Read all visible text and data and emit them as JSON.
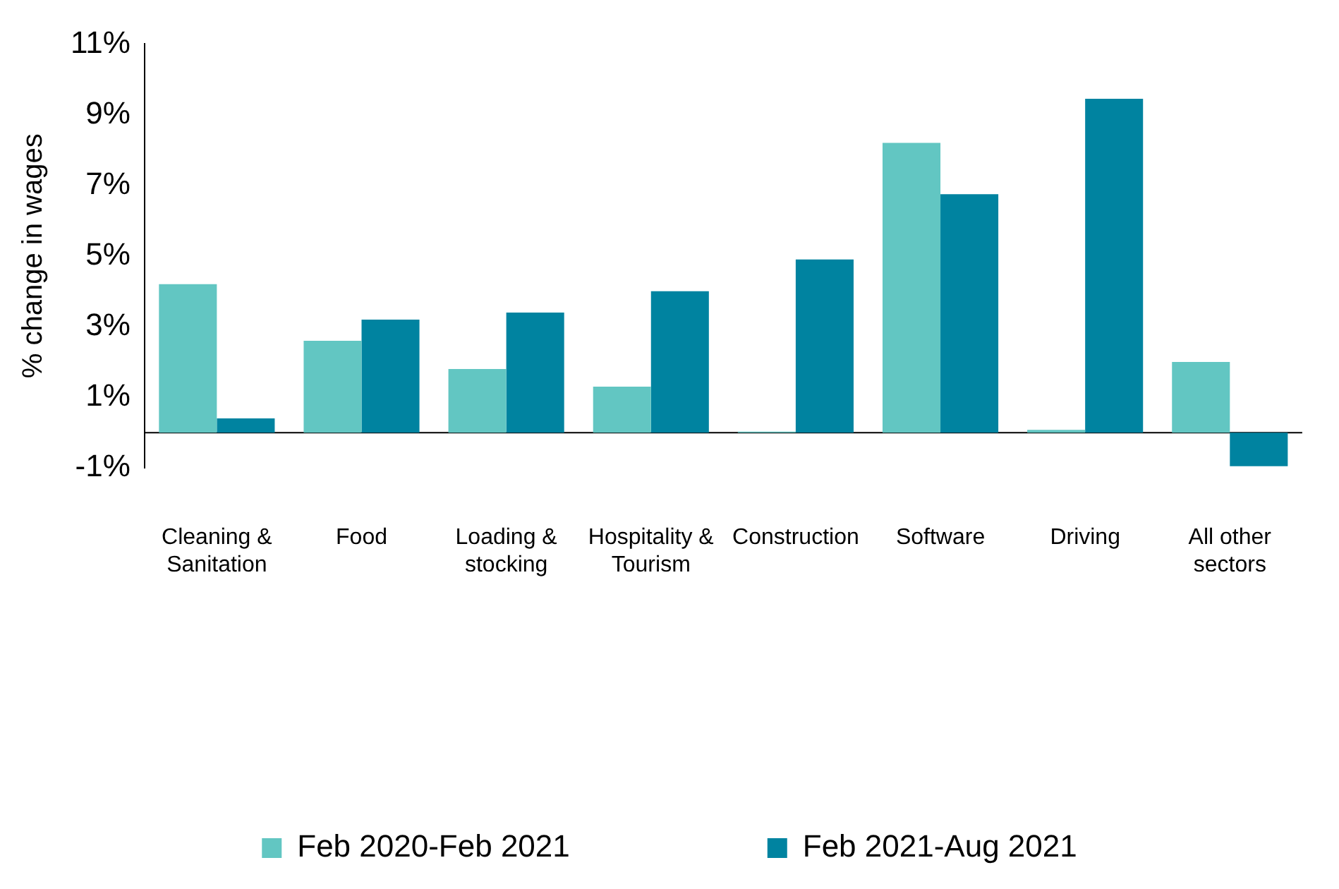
{
  "chart_data": {
    "type": "bar",
    "ylabel": "% change in wages",
    "categories": [
      "Cleaning & Sanitation",
      "Food",
      "Loading & stocking",
      "Hospitality & Tourism",
      "Construction",
      "Software",
      "Driving",
      "All other sectors"
    ],
    "series": [
      {
        "name": "Feb 2020-Feb 2021",
        "color": "#62c6c2",
        "values": [
          4.2,
          2.6,
          1.8,
          1.3,
          0.03,
          8.2,
          0.08,
          2.0
        ]
      },
      {
        "name": "Feb 2021-Aug 2021",
        "color": "#0083a0",
        "values": [
          0.4,
          3.2,
          3.4,
          4.0,
          4.9,
          6.75,
          9.45,
          -0.95
        ]
      }
    ],
    "ylim": [
      -1,
      11
    ],
    "yticks": [
      {
        "value": -1,
        "label": "-1%"
      },
      {
        "value": 1,
        "label": "1%"
      },
      {
        "value": 3,
        "label": "3%"
      },
      {
        "value": 5,
        "label": "5%"
      },
      {
        "value": 7,
        "label": "7%"
      },
      {
        "value": 9,
        "label": "9%"
      },
      {
        "value": 11,
        "label": "11%"
      }
    ],
    "grid": false,
    "legend": "bottom"
  }
}
